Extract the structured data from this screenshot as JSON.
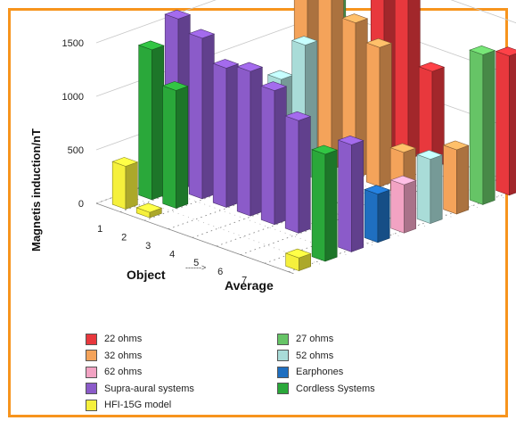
{
  "chart_data": {
    "type": "bar",
    "subtype": "3d-grouped",
    "title": "",
    "ylabel": "Magnetis induction/nT",
    "xlabel": "Object",
    "depth_label": "Average",
    "arrow_label": "------>",
    "ylim": [
      0,
      2000
    ],
    "yticks": [
      "0",
      "500",
      "1000",
      "1500",
      "2000"
    ],
    "categories": [
      "1",
      "2",
      "3",
      "4",
      "5",
      "6",
      "7"
    ],
    "colors": {
      "22 ohms": "#e8383d",
      "27 ohms": "#66c466",
      "32 ohms": "#f4a35a",
      "52 ohms": "#a9dcd8",
      "62 ohms": "#f2a3c3",
      "Earphones": "#1f6fc0",
      "Supra-aural systems": "#8b5bc9",
      "Cordless Systems": "#2aa83a",
      "HFI-15G model": "#f5f03c"
    },
    "legend": [
      "22 ohms",
      "27 ohms",
      "32 ohms",
      "52 ohms",
      "62 ohms",
      "Earphones",
      "Supra-aural systems",
      "Cordless Systems",
      "HFI-15G model"
    ],
    "series": [
      {
        "name": "HFI-15G model",
        "values": [
          400,
          50,
          null,
          null,
          null,
          null,
          null
        ],
        "average": 120
      },
      {
        "name": "Cordless Systems",
        "values": [
          1400,
          1100,
          null,
          null,
          null,
          null,
          null
        ],
        "average": 1000
      },
      {
        "name": "Supra-aural systems",
        "values": [
          1600,
          1500,
          1300,
          1350,
          1250,
          1050,
          null
        ],
        "average": 1000
      },
      {
        "name": "Earphones",
        "values": [
          null,
          null,
          null,
          null,
          null,
          null,
          null
        ],
        "average": 450
      },
      {
        "name": "62 ohms",
        "values": [
          null,
          700,
          null,
          null,
          null,
          null,
          null
        ],
        "average": 450
      },
      {
        "name": "52 ohms",
        "values": [
          null,
          850,
          1250,
          null,
          null,
          null,
          null
        ],
        "average": 600
      },
      {
        "name": "32 ohms",
        "values": [
          null,
          1550,
          1700,
          1450,
          1300,
          400,
          null
        ],
        "average": 600
      },
      {
        "name": "27 ohms",
        "values": [
          null,
          2100,
          null,
          null,
          null,
          null,
          null
        ],
        "average": 1400
      },
      {
        "name": "22 ohms",
        "values": [
          null,
          null,
          2150,
          2200,
          900,
          null,
          null
        ],
        "average": 1300
      }
    ],
    "grid": true,
    "legend_position": "bottom"
  }
}
